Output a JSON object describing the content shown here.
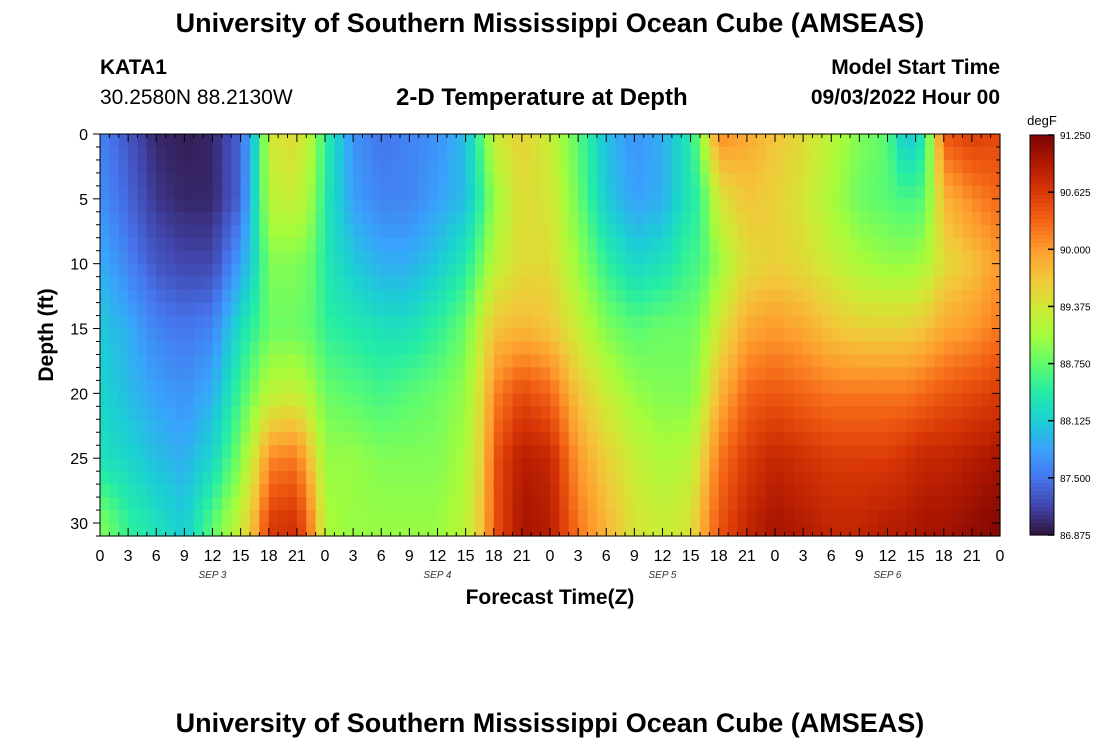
{
  "header": {
    "title": "University of Southern Mississippi Ocean Cube (AMSEAS)",
    "footer_title": "University of Southern Mississippi Ocean Cube (AMSEAS)",
    "station_id": "KATA1",
    "station_coords": "30.2580N  88.2130W",
    "model_start_label": "Model Start Time",
    "model_start_value": "09/03/2022 Hour 00"
  },
  "colors": {
    "scale": [
      "#30123b",
      "#4145ab",
      "#4675ed",
      "#39a2fc",
      "#1bcfd4",
      "#24eca6",
      "#61fc6c",
      "#a4fc3b",
      "#d1e834",
      "#f3c63a",
      "#fe9b2d",
      "#f36315",
      "#d93806",
      "#b11901",
      "#7a0403"
    ]
  },
  "chart_data": {
    "type": "heatmap",
    "title": "2-D Temperature at Depth",
    "xlabel": "Forecast Time(Z)",
    "ylabel": "Depth (ft)",
    "x_tick_labels": [
      "0",
      "3",
      "6",
      "9",
      "12",
      "15",
      "18",
      "21",
      "0",
      "3",
      "6",
      "9",
      "12",
      "15",
      "18",
      "21",
      "0",
      "3",
      "6",
      "9",
      "12",
      "15",
      "18",
      "21",
      "0",
      "3",
      "6",
      "9",
      "12",
      "15",
      "18",
      "21",
      "0"
    ],
    "x_range_hours": [
      0,
      96
    ],
    "day_labels": [
      {
        "text": "SEP 3",
        "hour": 12
      },
      {
        "text": "SEP 4",
        "hour": 36
      },
      {
        "text": "SEP 5",
        "hour": 60
      },
      {
        "text": "SEP 6",
        "hour": 84
      }
    ],
    "y_ticks": [
      0,
      5,
      10,
      15,
      20,
      25,
      30
    ],
    "y_range": [
      0,
      31
    ],
    "colorbar": {
      "unit": "degF",
      "range": [
        86.875,
        91.25
      ],
      "tick_values": [
        91.25,
        90.625,
        90.0,
        89.375,
        88.75,
        88.125,
        87.5,
        86.875
      ],
      "tick_labels": [
        "91.250",
        "90.625",
        "90.000",
        "89.375",
        "88.750",
        "88.125",
        "87.500",
        "86.875"
      ]
    },
    "depth_profiles_degF": {
      "depths": [
        0,
        5,
        10,
        15,
        20,
        25,
        30
      ],
      "profiles": [
        {
          "hour": 0,
          "values": [
            87.6,
            87.7,
            87.9,
            88.1,
            88.2,
            88.3,
            88.9
          ]
        },
        {
          "hour": 3,
          "values": [
            87.3,
            87.4,
            87.6,
            87.9,
            88.0,
            88.2,
            88.5
          ]
        },
        {
          "hour": 6,
          "values": [
            87.0,
            87.1,
            87.3,
            87.6,
            87.8,
            88.0,
            88.3
          ]
        },
        {
          "hour": 9,
          "values": [
            86.95,
            87.0,
            87.2,
            87.5,
            87.7,
            87.9,
            88.1
          ]
        },
        {
          "hour": 12,
          "values": [
            87.0,
            87.0,
            87.2,
            87.6,
            87.9,
            88.2,
            88.7
          ]
        },
        {
          "hour": 15,
          "values": [
            87.4,
            87.4,
            87.8,
            88.3,
            88.6,
            88.9,
            89.3
          ]
        },
        {
          "hour": 17,
          "values": [
            88.4,
            88.5,
            88.4,
            88.6,
            89.0,
            89.6,
            90.0
          ]
        },
        {
          "hour": 18,
          "values": [
            89.4,
            89.2,
            88.9,
            88.8,
            89.2,
            90.1,
            90.6
          ]
        },
        {
          "hour": 21,
          "values": [
            89.5,
            89.3,
            88.9,
            88.8,
            89.3,
            90.2,
            90.7
          ]
        },
        {
          "hour": 23,
          "values": [
            89.0,
            88.9,
            88.7,
            88.7,
            89.0,
            89.5,
            89.9
          ]
        },
        {
          "hour": 24,
          "values": [
            88.5,
            88.4,
            88.4,
            88.5,
            88.8,
            89.0,
            89.1
          ]
        },
        {
          "hour": 27,
          "values": [
            87.7,
            87.8,
            88.1,
            88.4,
            88.7,
            89.0,
            89.0
          ]
        },
        {
          "hour": 30,
          "values": [
            87.5,
            87.6,
            87.9,
            88.3,
            88.6,
            88.9,
            89.0
          ]
        },
        {
          "hour": 33,
          "values": [
            87.6,
            87.6,
            87.9,
            88.3,
            88.7,
            88.9,
            89.0
          ]
        },
        {
          "hour": 36,
          "values": [
            87.7,
            87.8,
            88.1,
            88.5,
            88.8,
            88.9,
            89.0
          ]
        },
        {
          "hour": 39,
          "values": [
            88.0,
            88.0,
            88.4,
            88.8,
            89.0,
            89.1,
            89.2
          ]
        },
        {
          "hour": 41,
          "values": [
            88.8,
            88.6,
            88.9,
            89.4,
            89.6,
            89.7,
            89.8
          ]
        },
        {
          "hour": 42,
          "values": [
            89.3,
            89.0,
            89.2,
            89.7,
            90.1,
            90.4,
            90.4
          ]
        },
        {
          "hour": 45,
          "values": [
            89.6,
            89.5,
            89.5,
            89.8,
            90.5,
            90.9,
            91.0
          ]
        },
        {
          "hour": 48,
          "values": [
            89.3,
            89.4,
            89.5,
            89.7,
            90.3,
            90.8,
            90.9
          ]
        },
        {
          "hour": 51,
          "values": [
            88.7,
            88.8,
            89.0,
            89.3,
            89.7,
            90.0,
            90.2
          ]
        },
        {
          "hour": 54,
          "values": [
            88.0,
            88.1,
            88.5,
            88.9,
            89.3,
            89.6,
            89.8
          ]
        },
        {
          "hour": 57,
          "values": [
            87.7,
            87.8,
            88.2,
            88.7,
            89.0,
            89.3,
            89.4
          ]
        },
        {
          "hour": 60,
          "values": [
            87.9,
            87.9,
            88.3,
            88.8,
            88.9,
            89.1,
            89.3
          ]
        },
        {
          "hour": 63,
          "values": [
            88.4,
            88.4,
            88.6,
            88.8,
            88.9,
            89.2,
            89.4
          ]
        },
        {
          "hour": 64,
          "values": [
            88.9,
            88.5,
            88.6,
            88.9,
            89.1,
            89.5,
            89.8
          ]
        },
        {
          "hour": 66,
          "values": [
            90.1,
            89.4,
            89.0,
            89.4,
            89.8,
            90.2,
            90.4
          ]
        },
        {
          "hour": 69,
          "values": [
            89.9,
            89.7,
            89.5,
            89.9,
            90.3,
            90.6,
            90.8
          ]
        },
        {
          "hour": 72,
          "values": [
            89.7,
            89.6,
            89.6,
            90.0,
            90.4,
            90.8,
            91.0
          ]
        },
        {
          "hour": 75,
          "values": [
            89.5,
            89.4,
            89.5,
            89.9,
            90.3,
            90.7,
            90.9
          ]
        },
        {
          "hour": 78,
          "values": [
            89.2,
            89.1,
            89.3,
            89.7,
            90.2,
            90.6,
            90.8
          ]
        },
        {
          "hour": 81,
          "values": [
            88.9,
            88.8,
            89.1,
            89.6,
            90.2,
            90.6,
            90.8
          ]
        },
        {
          "hour": 84,
          "values": [
            88.7,
            88.7,
            89.0,
            89.6,
            90.2,
            90.6,
            90.9
          ]
        },
        {
          "hour": 86,
          "values": [
            88.0,
            88.6,
            89.0,
            89.6,
            90.2,
            90.7,
            90.9
          ]
        },
        {
          "hour": 88,
          "values": [
            88.4,
            88.7,
            89.1,
            89.7,
            90.3,
            90.8,
            91.0
          ]
        },
        {
          "hour": 90,
          "values": [
            90.4,
            89.8,
            89.5,
            89.9,
            90.4,
            90.8,
            91.0
          ]
        },
        {
          "hour": 93,
          "values": [
            90.6,
            90.1,
            89.7,
            90.0,
            90.5,
            90.9,
            91.1
          ]
        },
        {
          "hour": 96,
          "values": [
            90.5,
            90.3,
            90.0,
            90.2,
            90.6,
            91.0,
            91.2
          ]
        }
      ]
    }
  }
}
